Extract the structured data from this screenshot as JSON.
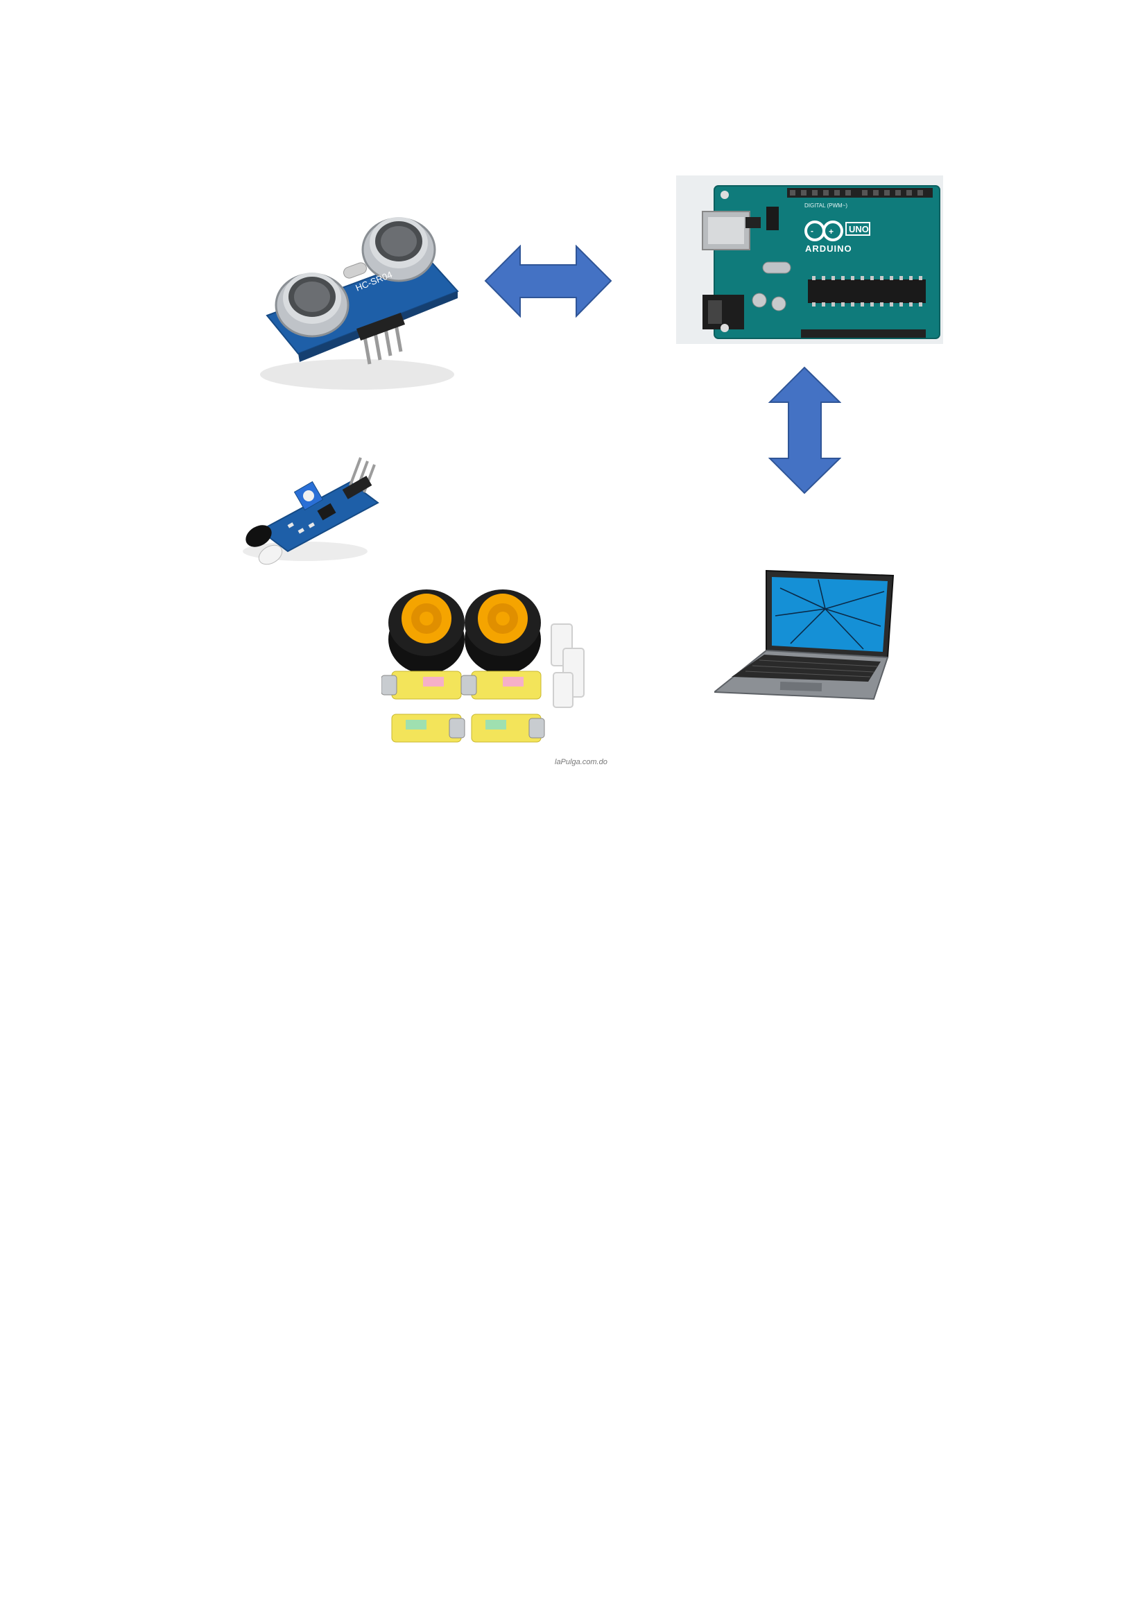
{
  "components": {
    "ultrasonic_sensor": {
      "icon": "ultrasonic-sensor-image",
      "board_marking": "HC-SR04"
    },
    "ir_sensor": {
      "icon": "ir-obstacle-sensor-image"
    },
    "motor_kit": {
      "icon": "wheels-and-motors-image",
      "watermark": "laPulga.com.do"
    },
    "arduino": {
      "icon": "arduino-uno-image",
      "brand": "ARDUINO",
      "model": "UNO",
      "header_label": "DIGITAL (PWM~)"
    },
    "laptop": {
      "icon": "laptop-image"
    }
  },
  "connectors": [
    {
      "name": "sensor-arduino-arrow",
      "icon": "double-arrow-horizontal-icon"
    },
    {
      "name": "arduino-laptop-arrow",
      "icon": "double-arrow-vertical-icon"
    }
  ],
  "colors": {
    "arrow": "#4472C4",
    "arrow_border": "#2F5597",
    "pcb_blue": "#1E5FA8",
    "arduino_teal": "#0F7B7B",
    "wheel_yellow": "#F5A400",
    "motor_yellow": "#F3E45A"
  }
}
